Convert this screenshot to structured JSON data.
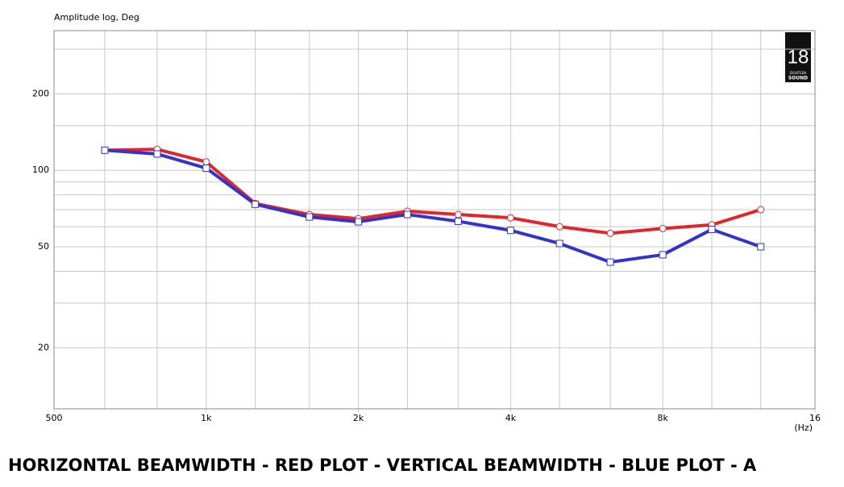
{
  "chart_data": {
    "type": "line",
    "y_axis_label": "Amplitude log, Deg",
    "x_unit": "(Hz)",
    "caption": "HORIZONTAL BEAMWIDTH - RED PLOT - VERTICAL BEAMWIDTH - BLUE PLOT - A",
    "logo": {
      "number": "18",
      "line1": "EIGHTEEN",
      "line2": "SOUND"
    },
    "x": [
      630,
      800,
      1000,
      1250,
      1600,
      2000,
      2500,
      3150,
      4000,
      5000,
      6300,
      8000,
      10000,
      12500
    ],
    "series": [
      {
        "color": "#e0262b",
        "marker": "circle",
        "values": [
          120,
          121,
          108,
          74,
          67,
          64.5,
          69,
          67,
          65,
          60,
          56.5,
          59,
          61,
          70
        ]
      },
      {
        "color": "#3333cc",
        "marker": "square",
        "values": [
          120,
          116,
          102,
          73.5,
          65.5,
          62.7,
          67,
          63,
          58,
          51.5,
          43.5,
          46.5,
          58.5,
          50
        ]
      }
    ],
    "xlog": true,
    "ylog": true,
    "xlim": [
      500,
      16000
    ],
    "ylim": [
      11.5,
      355
    ],
    "xticks": [
      500,
      {
        "value": 1000,
        "label": "1k"
      },
      {
        "value": 2000,
        "label": "2k"
      },
      {
        "value": 4000,
        "label": "4k"
      },
      {
        "value": 8000,
        "label": "8k"
      },
      {
        "value": 16000,
        "label": "16"
      }
    ],
    "xgrid_minor": [
      630,
      800,
      1250,
      1600,
      2500,
      3150,
      5000,
      6300,
      10000,
      12500
    ],
    "yticks": [
      20,
      50,
      100,
      200
    ],
    "ygrid_minor": [
      30,
      40,
      60,
      70,
      80,
      90,
      150,
      300
    ],
    "grid": true
  }
}
